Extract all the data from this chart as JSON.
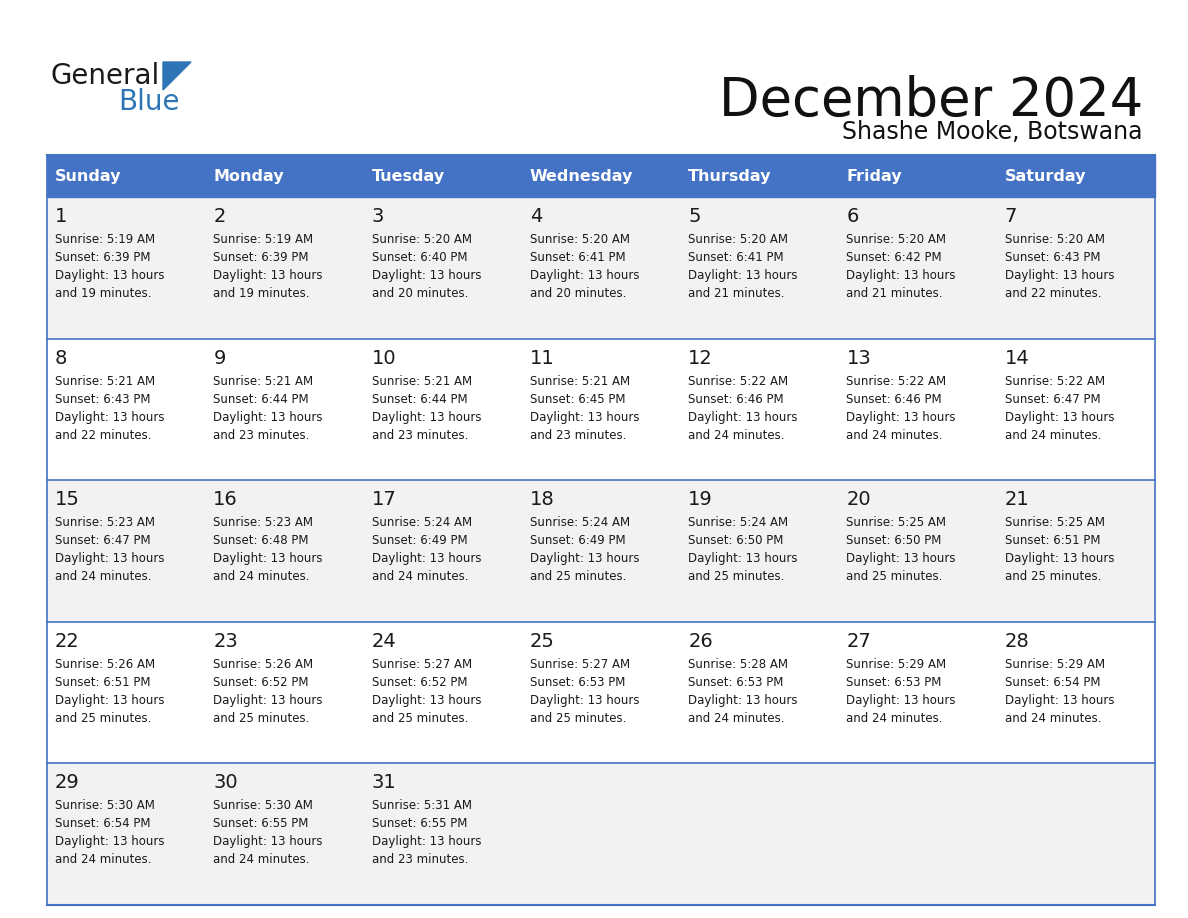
{
  "title": "December 2024",
  "subtitle": "Shashe Mooke, Botswana",
  "header_bg": "#4472C4",
  "header_text_color": "#FFFFFF",
  "cell_bg_even": "#F2F2F2",
  "cell_bg_odd": "#FFFFFF",
  "grid_line_color": "#4472C4",
  "text_color": "#1a1a1a",
  "day_names": [
    "Sunday",
    "Monday",
    "Tuesday",
    "Wednesday",
    "Thursday",
    "Friday",
    "Saturday"
  ],
  "logo_general_color": "#1a1a1a",
  "logo_blue_color": "#2E75B6",
  "calendar_data": [
    {
      "day": 1,
      "sunrise": "5:19 AM",
      "sunset": "6:39 PM",
      "daylight": "13 hours and 19 minutes."
    },
    {
      "day": 2,
      "sunrise": "5:19 AM",
      "sunset": "6:39 PM",
      "daylight": "13 hours and 19 minutes."
    },
    {
      "day": 3,
      "sunrise": "5:20 AM",
      "sunset": "6:40 PM",
      "daylight": "13 hours and 20 minutes."
    },
    {
      "day": 4,
      "sunrise": "5:20 AM",
      "sunset": "6:41 PM",
      "daylight": "13 hours and 20 minutes."
    },
    {
      "day": 5,
      "sunrise": "5:20 AM",
      "sunset": "6:41 PM",
      "daylight": "13 hours and 21 minutes."
    },
    {
      "day": 6,
      "sunrise": "5:20 AM",
      "sunset": "6:42 PM",
      "daylight": "13 hours and 21 minutes."
    },
    {
      "day": 7,
      "sunrise": "5:20 AM",
      "sunset": "6:43 PM",
      "daylight": "13 hours and 22 minutes."
    },
    {
      "day": 8,
      "sunrise": "5:21 AM",
      "sunset": "6:43 PM",
      "daylight": "13 hours and 22 minutes."
    },
    {
      "day": 9,
      "sunrise": "5:21 AM",
      "sunset": "6:44 PM",
      "daylight": "13 hours and 23 minutes."
    },
    {
      "day": 10,
      "sunrise": "5:21 AM",
      "sunset": "6:44 PM",
      "daylight": "13 hours and 23 minutes."
    },
    {
      "day": 11,
      "sunrise": "5:21 AM",
      "sunset": "6:45 PM",
      "daylight": "13 hours and 23 minutes."
    },
    {
      "day": 12,
      "sunrise": "5:22 AM",
      "sunset": "6:46 PM",
      "daylight": "13 hours and 24 minutes."
    },
    {
      "day": 13,
      "sunrise": "5:22 AM",
      "sunset": "6:46 PM",
      "daylight": "13 hours and 24 minutes."
    },
    {
      "day": 14,
      "sunrise": "5:22 AM",
      "sunset": "6:47 PM",
      "daylight": "13 hours and 24 minutes."
    },
    {
      "day": 15,
      "sunrise": "5:23 AM",
      "sunset": "6:47 PM",
      "daylight": "13 hours and 24 minutes."
    },
    {
      "day": 16,
      "sunrise": "5:23 AM",
      "sunset": "6:48 PM",
      "daylight": "13 hours and 24 minutes."
    },
    {
      "day": 17,
      "sunrise": "5:24 AM",
      "sunset": "6:49 PM",
      "daylight": "13 hours and 24 minutes."
    },
    {
      "day": 18,
      "sunrise": "5:24 AM",
      "sunset": "6:49 PM",
      "daylight": "13 hours and 25 minutes."
    },
    {
      "day": 19,
      "sunrise": "5:24 AM",
      "sunset": "6:50 PM",
      "daylight": "13 hours and 25 minutes."
    },
    {
      "day": 20,
      "sunrise": "5:25 AM",
      "sunset": "6:50 PM",
      "daylight": "13 hours and 25 minutes."
    },
    {
      "day": 21,
      "sunrise": "5:25 AM",
      "sunset": "6:51 PM",
      "daylight": "13 hours and 25 minutes."
    },
    {
      "day": 22,
      "sunrise": "5:26 AM",
      "sunset": "6:51 PM",
      "daylight": "13 hours and 25 minutes."
    },
    {
      "day": 23,
      "sunrise": "5:26 AM",
      "sunset": "6:52 PM",
      "daylight": "13 hours and 25 minutes."
    },
    {
      "day": 24,
      "sunrise": "5:27 AM",
      "sunset": "6:52 PM",
      "daylight": "13 hours and 25 minutes."
    },
    {
      "day": 25,
      "sunrise": "5:27 AM",
      "sunset": "6:53 PM",
      "daylight": "13 hours and 25 minutes."
    },
    {
      "day": 26,
      "sunrise": "5:28 AM",
      "sunset": "6:53 PM",
      "daylight": "13 hours and 24 minutes."
    },
    {
      "day": 27,
      "sunrise": "5:29 AM",
      "sunset": "6:53 PM",
      "daylight": "13 hours and 24 minutes."
    },
    {
      "day": 28,
      "sunrise": "5:29 AM",
      "sunset": "6:54 PM",
      "daylight": "13 hours and 24 minutes."
    },
    {
      "day": 29,
      "sunrise": "5:30 AM",
      "sunset": "6:54 PM",
      "daylight": "13 hours and 24 minutes."
    },
    {
      "day": 30,
      "sunrise": "5:30 AM",
      "sunset": "6:55 PM",
      "daylight": "13 hours and 24 minutes."
    },
    {
      "day": 31,
      "sunrise": "5:31 AM",
      "sunset": "6:55 PM",
      "daylight": "13 hours and 23 minutes."
    }
  ]
}
